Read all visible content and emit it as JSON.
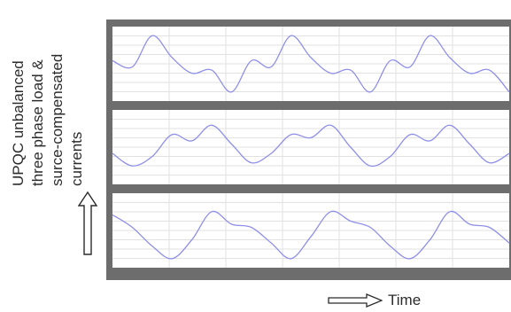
{
  "y_label_lines": [
    "UPQC unbalanced",
    "three phase load &",
    "surce-compensated",
    "currents"
  ],
  "x_label": "Time",
  "colors": {
    "frame": "#6d6d6d",
    "plot_bg": "#ffffff",
    "grid": "#e2e2e2",
    "trace": "#8f8fe8"
  },
  "icons": {
    "up": "up-arrow-icon",
    "right": "right-arrow-icon"
  },
  "chart_data": {
    "type": "line",
    "title": "",
    "xlabel": "Time",
    "ylabel": "UPQC unbalanced three phase load & surce-compensated currents",
    "grid": true,
    "panels": [
      {
        "name": "",
        "x": [
          0,
          0.05,
          0.1,
          0.15,
          0.2,
          0.25,
          0.3,
          0.35,
          0.4,
          0.45,
          0.5,
          0.55,
          0.6,
          0.65,
          0.7,
          0.75,
          0.8,
          0.85,
          0.9,
          0.95,
          1
        ],
        "values": [
          0.1,
          -0.1,
          0.9,
          0.2,
          -0.3,
          -0.2,
          -0.9,
          0.1,
          -0.1,
          0.9,
          0.2,
          -0.3,
          -0.2,
          -0.9,
          0.1,
          -0.1,
          0.9,
          0.2,
          -0.3,
          -0.2,
          -0.9
        ]
      },
      {
        "name": "",
        "x": [
          0,
          0.05,
          0.1,
          0.15,
          0.2,
          0.25,
          0.3,
          0.35,
          0.4,
          0.45,
          0.5,
          0.55,
          0.6,
          0.65,
          0.7,
          0.75,
          0.8,
          0.85,
          0.9,
          0.95,
          1
        ],
        "values": [
          -0.2,
          -0.6,
          -0.3,
          0.4,
          0.2,
          0.7,
          0.1,
          -0.5,
          -0.2,
          0.4,
          0.3,
          0.7,
          0.0,
          -0.6,
          -0.3,
          0.4,
          0.2,
          0.7,
          0.1,
          -0.5,
          -0.2
        ]
      },
      {
        "name": "",
        "x": [
          0,
          0.05,
          0.1,
          0.15,
          0.2,
          0.25,
          0.3,
          0.35,
          0.4,
          0.45,
          0.5,
          0.55,
          0.6,
          0.65,
          0.7,
          0.75,
          0.8,
          0.85,
          0.9,
          0.95,
          1
        ],
        "values": [
          0.5,
          0.1,
          -0.5,
          -0.9,
          -0.3,
          0.6,
          0.2,
          0.1,
          -0.4,
          -0.9,
          -0.2,
          0.6,
          0.3,
          0.1,
          -0.5,
          -0.9,
          -0.3,
          0.6,
          0.2,
          0.1,
          -0.4
        ]
      }
    ]
  }
}
